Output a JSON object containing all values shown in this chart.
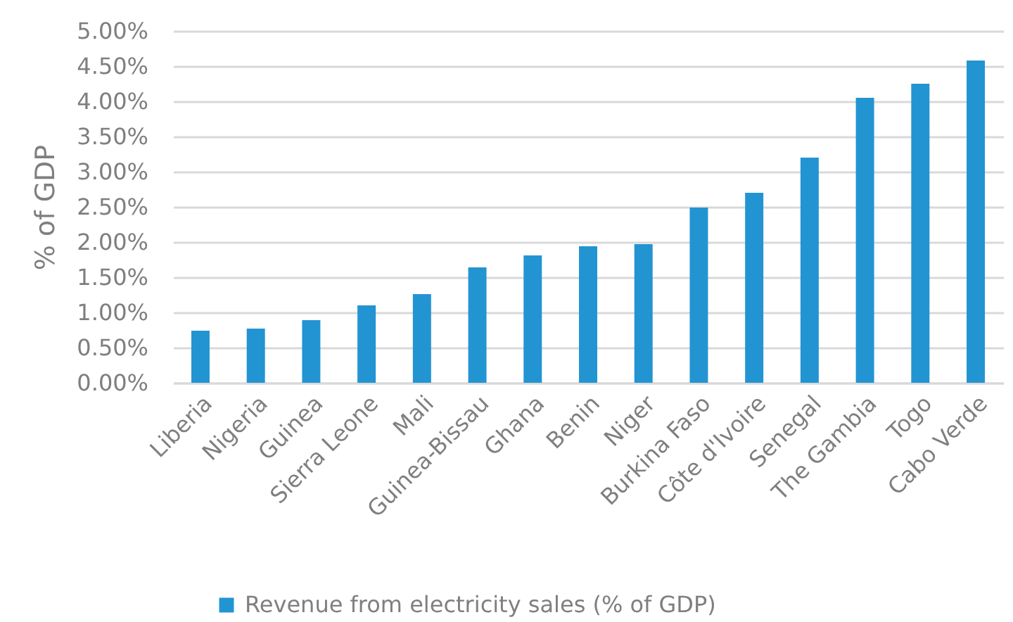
{
  "chart_data": {
    "type": "bar",
    "ylabel": "% of GDP",
    "categories": [
      "Liberia",
      "Nigeria",
      "Guinea",
      "Sierra Leone",
      "Mali",
      "Guinea-Bissau",
      "Ghana",
      "Benin",
      "Niger",
      "Burkina Faso",
      "Côte d'Ivoire",
      "Senegal",
      "The Gambia",
      "Togo",
      "Cabo Verde"
    ],
    "series": [
      {
        "name": "Revenue from electricity sales (% of GDP)",
        "color": "#2394d2",
        "values": [
          0.74,
          0.77,
          0.89,
          1.1,
          1.26,
          1.64,
          1.81,
          1.94,
          1.97,
          2.49,
          2.7,
          3.2,
          4.05,
          4.25,
          4.58
        ]
      }
    ],
    "ylim": [
      0,
      5
    ],
    "yticks": [
      {
        "value": 0,
        "label": "0.00%"
      },
      {
        "value": 0.5,
        "label": "0.50%"
      },
      {
        "value": 1,
        "label": "1.00%"
      },
      {
        "value": 1.5,
        "label": "1.50%"
      },
      {
        "value": 2,
        "label": "2.00%"
      },
      {
        "value": 2.5,
        "label": "2.50%"
      },
      {
        "value": 3,
        "label": "3.00%"
      },
      {
        "value": 3.5,
        "label": "3.50%"
      },
      {
        "value": 4,
        "label": "4.00%"
      },
      {
        "value": 4.5,
        "label": "4.50%"
      },
      {
        "value": 5,
        "label": "5.00%"
      }
    ],
    "grid": "y",
    "legend": "bottom"
  }
}
